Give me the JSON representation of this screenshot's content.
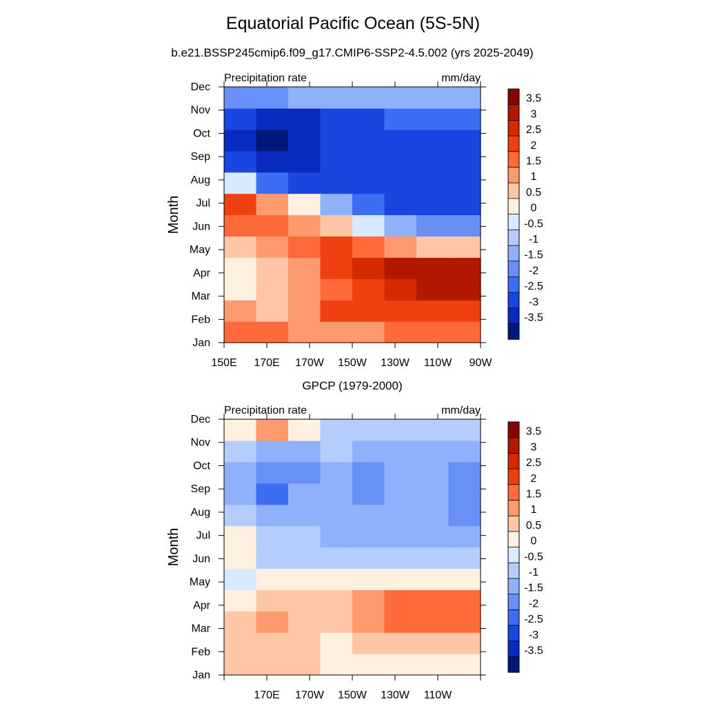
{
  "figure": {
    "title": "Equatorial Pacific Ocean (5S-5N)"
  },
  "colorbar": {
    "levels": [
      "3.5",
      "3",
      "2.5",
      "2",
      "1.5",
      "1",
      "0.5",
      "0",
      "-0.5",
      "-1",
      "-1.5",
      "-2",
      "-2.5",
      "-3",
      "-3.5"
    ],
    "colors": [
      "#8c0000",
      "#b21800",
      "#d42a00",
      "#f04010",
      "#ff6a3a",
      "#ff9a6e",
      "#ffc6a6",
      "#fff0e0",
      "#d8eaff",
      "#b5cdfd",
      "#8fb0fb",
      "#6890f7",
      "#3c6ef3",
      "#1946e0",
      "#0a2bbf",
      "#00187a"
    ]
  },
  "chart_data": [
    {
      "type": "heatmap",
      "title": "b.e21.BSSP245cmip6.f09_g17.CMIP6-SSP2-4.5.002 (yrs 2025-2049)",
      "left_label": "Precipitation rate",
      "right_label": "mm/day",
      "ylabel": "Month",
      "x_ticks": [
        "150E",
        "170E",
        "170W",
        "150W",
        "130W",
        "110W",
        "90W"
      ],
      "y_ticks": [
        "Jan",
        "Feb",
        "Mar",
        "Apr",
        "May",
        "Jun",
        "Jul",
        "Aug",
        "Sep",
        "Oct",
        "Nov",
        "Dec"
      ],
      "xlim": [
        "150E",
        "90W"
      ],
      "ylim": [
        "Jan",
        "Dec"
      ],
      "colorbar_range": [
        -3.5,
        3.5
      ],
      "grid": [
        [
          2.0,
          2.0,
          1.5,
          1.5,
          1.5,
          2.0,
          2.0,
          2.0
        ],
        [
          1.5,
          1.0,
          1.5,
          2.5,
          2.5,
          2.5,
          2.5,
          2.5
        ],
        [
          0.5,
          1.0,
          1.5,
          2.0,
          2.5,
          3.0,
          3.5,
          3.5
        ],
        [
          0.5,
          1.0,
          1.5,
          2.5,
          3.0,
          3.5,
          3.5,
          3.5
        ],
        [
          1.0,
          1.5,
          2.0,
          2.5,
          2.0,
          1.5,
          1.0,
          1.0
        ],
        [
          2.0,
          2.0,
          1.5,
          1.0,
          0.0,
          -1.0,
          -1.5,
          -1.5
        ],
        [
          2.5,
          1.5,
          0.5,
          -1.0,
          -2.0,
          -2.5,
          -2.5,
          -2.5
        ],
        [
          0.0,
          -2.0,
          -2.5,
          -2.5,
          -2.5,
          -2.5,
          -2.5,
          -2.5
        ],
        [
          -2.5,
          -3.0,
          -3.0,
          -2.5,
          -2.5,
          -2.5,
          -2.5,
          -2.5
        ],
        [
          -3.0,
          -3.5,
          -3.0,
          -2.5,
          -2.5,
          -2.5,
          -2.5,
          -2.5
        ],
        [
          -2.5,
          -3.0,
          -3.0,
          -2.5,
          -2.5,
          -2.0,
          -2.0,
          -2.0
        ],
        [
          -1.5,
          -1.5,
          -1.0,
          -1.0,
          -1.0,
          -1.0,
          -1.0,
          -1.0
        ]
      ]
    },
    {
      "type": "heatmap",
      "title": "GPCP (1979-2000)",
      "left_label": "Precipitation rate",
      "right_label": "mm/day",
      "ylabel": "Month",
      "x_ticks": [
        "170E",
        "170W",
        "150W",
        "130W",
        "110W"
      ],
      "y_ticks": [
        "Jan",
        "Feb",
        "Mar",
        "Apr",
        "May",
        "Jun",
        "Jul",
        "Aug",
        "Sep",
        "Oct",
        "Nov",
        "Dec"
      ],
      "xlim": [
        "150E",
        "90W"
      ],
      "ylim": [
        "Jan",
        "Dec"
      ],
      "colorbar_range": [
        -3.5,
        3.5
      ],
      "grid": [
        [
          1.0,
          1.0,
          1.0,
          0.5,
          0.5,
          0.5,
          0.5,
          0.5
        ],
        [
          1.0,
          1.0,
          1.0,
          0.5,
          1.0,
          1.0,
          1.0,
          1.0
        ],
        [
          1.0,
          1.5,
          1.0,
          1.0,
          1.5,
          2.0,
          2.0,
          2.0
        ],
        [
          0.5,
          1.0,
          1.0,
          1.0,
          1.5,
          2.0,
          2.0,
          2.0
        ],
        [
          0.0,
          0.5,
          0.5,
          0.5,
          0.5,
          0.5,
          0.5,
          0.5
        ],
        [
          0.5,
          -0.5,
          -0.5,
          -0.5,
          -0.5,
          -0.5,
          -0.5,
          -0.5
        ],
        [
          0.5,
          -0.5,
          -0.5,
          -1.0,
          -1.0,
          -1.0,
          -1.0,
          -1.0
        ],
        [
          -0.5,
          -1.0,
          -1.0,
          -1.0,
          -1.0,
          -1.0,
          -1.0,
          -1.5
        ],
        [
          -1.0,
          -2.0,
          -1.0,
          -1.0,
          -1.5,
          -1.0,
          -1.0,
          -1.5
        ],
        [
          -1.0,
          -1.5,
          -1.5,
          -1.0,
          -1.5,
          -1.0,
          -1.0,
          -1.5
        ],
        [
          -0.5,
          -1.0,
          -1.0,
          -0.5,
          -1.0,
          -1.0,
          -1.0,
          -1.0
        ],
        [
          0.5,
          1.5,
          0.5,
          -0.5,
          -0.5,
          -0.5,
          -0.5,
          -0.5
        ]
      ]
    }
  ]
}
